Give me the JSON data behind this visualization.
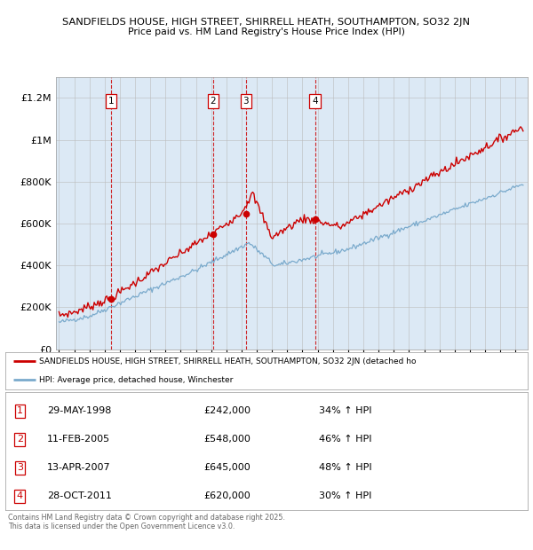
{
  "title_line1": "SANDFIELDS HOUSE, HIGH STREET, SHIRRELL HEATH, SOUTHAMPTON, SO32 2JN",
  "title_line2": "Price paid vs. HM Land Registry's House Price Index (HPI)",
  "bg_color": "#dce9f5",
  "red_line_color": "#cc0000",
  "blue_line_color": "#7aaacc",
  "transactions": [
    {
      "num": 1,
      "date": "29-MAY-1998",
      "price": 242000,
      "pct": "34% ↑ HPI",
      "x_year": 1998.41
    },
    {
      "num": 2,
      "date": "11-FEB-2005",
      "price": 548000,
      "pct": "46% ↑ HPI",
      "x_year": 2005.12
    },
    {
      "num": 3,
      "date": "2007-04-13",
      "price": 645000,
      "pct": "48% ↑ HPI",
      "x_year": 2007.28
    },
    {
      "num": 4,
      "date": "28-OCT-2011",
      "price": 620000,
      "pct": "30% ↑ HPI",
      "x_year": 2011.83
    }
  ],
  "table_rows": [
    [
      1,
      "29-MAY-1998",
      "£242,000",
      "34% ↑ HPI"
    ],
    [
      2,
      "11-FEB-2005",
      "£548,000",
      "46% ↑ HPI"
    ],
    [
      3,
      "13-APR-2007",
      "£645,000",
      "48% ↑ HPI"
    ],
    [
      4,
      "28-OCT-2011",
      "£620,000",
      "30% ↑ HPI"
    ]
  ],
  "legend_line1": "SANDFIELDS HOUSE, HIGH STREET, SHIRRELL HEATH, SOUTHAMPTON, SO32 2JN (detached ho",
  "legend_line2": "HPI: Average price, detached house, Winchester",
  "footer": "Contains HM Land Registry data © Crown copyright and database right 2025.\nThis data is licensed under the Open Government Licence v3.0.",
  "ylim": [
    0,
    1300000
  ],
  "yticks": [
    0,
    200000,
    400000,
    600000,
    800000,
    1000000,
    1200000
  ],
  "ytick_labels": [
    "£0",
    "£200K",
    "£400K",
    "£600K",
    "£800K",
    "£1M",
    "£1.2M"
  ],
  "xlim_start": 1994.8,
  "xlim_end": 2025.8,
  "xticks": [
    1995,
    1996,
    1997,
    1998,
    1999,
    2000,
    2001,
    2002,
    2003,
    2004,
    2005,
    2006,
    2007,
    2008,
    2009,
    2010,
    2011,
    2012,
    2013,
    2014,
    2015,
    2016,
    2017,
    2018,
    2019,
    2020,
    2021,
    2022,
    2023,
    2024,
    2025
  ]
}
